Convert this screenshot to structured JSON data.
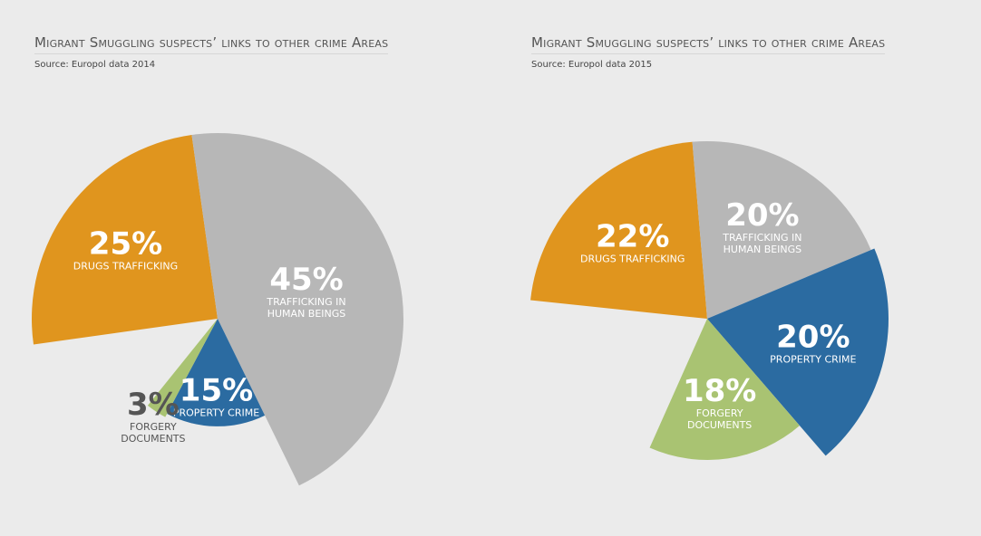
{
  "chart_data": [
    {
      "type": "pie",
      "title": "Migrant Smuggling suspects’ links to other crime Areas",
      "subtitle": "Source: Europol data 2014",
      "categories": [
        "DRUGS TRAFFICKING",
        "TRAFFICKING IN HUMAN BEINGS",
        "PROPERTY CRIME",
        "FORGERY DOCUMENTS"
      ],
      "values": [
        25,
        45,
        15,
        3
      ],
      "value_labels": [
        "25%",
        "45%",
        "15%",
        "3%"
      ],
      "colors": [
        "#e0951e",
        "#b7b7b7",
        "#2b6ba1",
        "#a9c372"
      ]
    },
    {
      "type": "pie",
      "title": "Migrant Smuggling suspects’ links to other crime Areas",
      "subtitle": "Source: Europol data 2015",
      "categories": [
        "DRUGS TRAFFICKING",
        "TRAFFICKING IN HUMAN BEINGS",
        "PROPERTY CRIME",
        "FORGERY DOCUMENTS"
      ],
      "values": [
        22,
        20,
        20,
        18
      ],
      "value_labels": [
        "22%",
        "20%",
        "20%",
        "18%"
      ],
      "colors": [
        "#e0951e",
        "#b7b7b7",
        "#2b6ba1",
        "#a9c372"
      ]
    }
  ]
}
